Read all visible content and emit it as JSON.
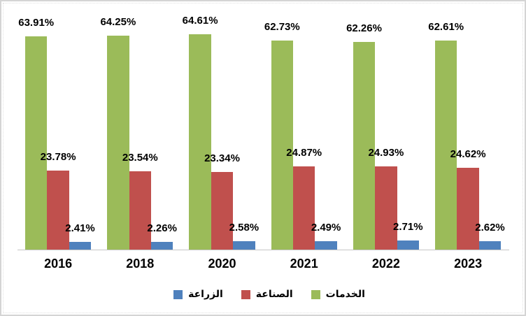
{
  "chart_data": {
    "type": "bar",
    "title": "",
    "categories": [
      "2016",
      "2018",
      "2020",
      "2021",
      "2022",
      "2023"
    ],
    "series": [
      {
        "key": "services",
        "name": "الخدمات",
        "color": "#9BBB59",
        "values": [
          63.91,
          64.25,
          64.61,
          62.73,
          62.26,
          62.61
        ],
        "labels": [
          "63.91%",
          "64.25%",
          "64.61%",
          "62.73%",
          "62.26%",
          "62.61%"
        ]
      },
      {
        "key": "industry",
        "name": "الصناعة",
        "color": "#C0504D",
        "values": [
          23.78,
          23.54,
          23.34,
          24.87,
          24.93,
          24.62
        ],
        "labels": [
          "23.78%",
          "23.54%",
          "23.34%",
          "24.87%",
          "24.93%",
          "24.62%"
        ]
      },
      {
        "key": "agriculture",
        "name": "الزراعة",
        "color": "#4F81BD",
        "values": [
          2.41,
          2.26,
          2.58,
          2.49,
          2.71,
          2.62
        ],
        "labels": [
          "2.41%",
          "2.26%",
          "2.58%",
          "2.49%",
          "2.71%",
          "2.62%"
        ]
      }
    ],
    "value_suffix": "%",
    "ylim": [
      0,
      70
    ],
    "grid": false,
    "legend_position": "bottom",
    "legend_order": [
      "agriculture",
      "industry",
      "services"
    ],
    "axis_line_color": "#C6C6C6",
    "data_label_color": "#000000"
  }
}
